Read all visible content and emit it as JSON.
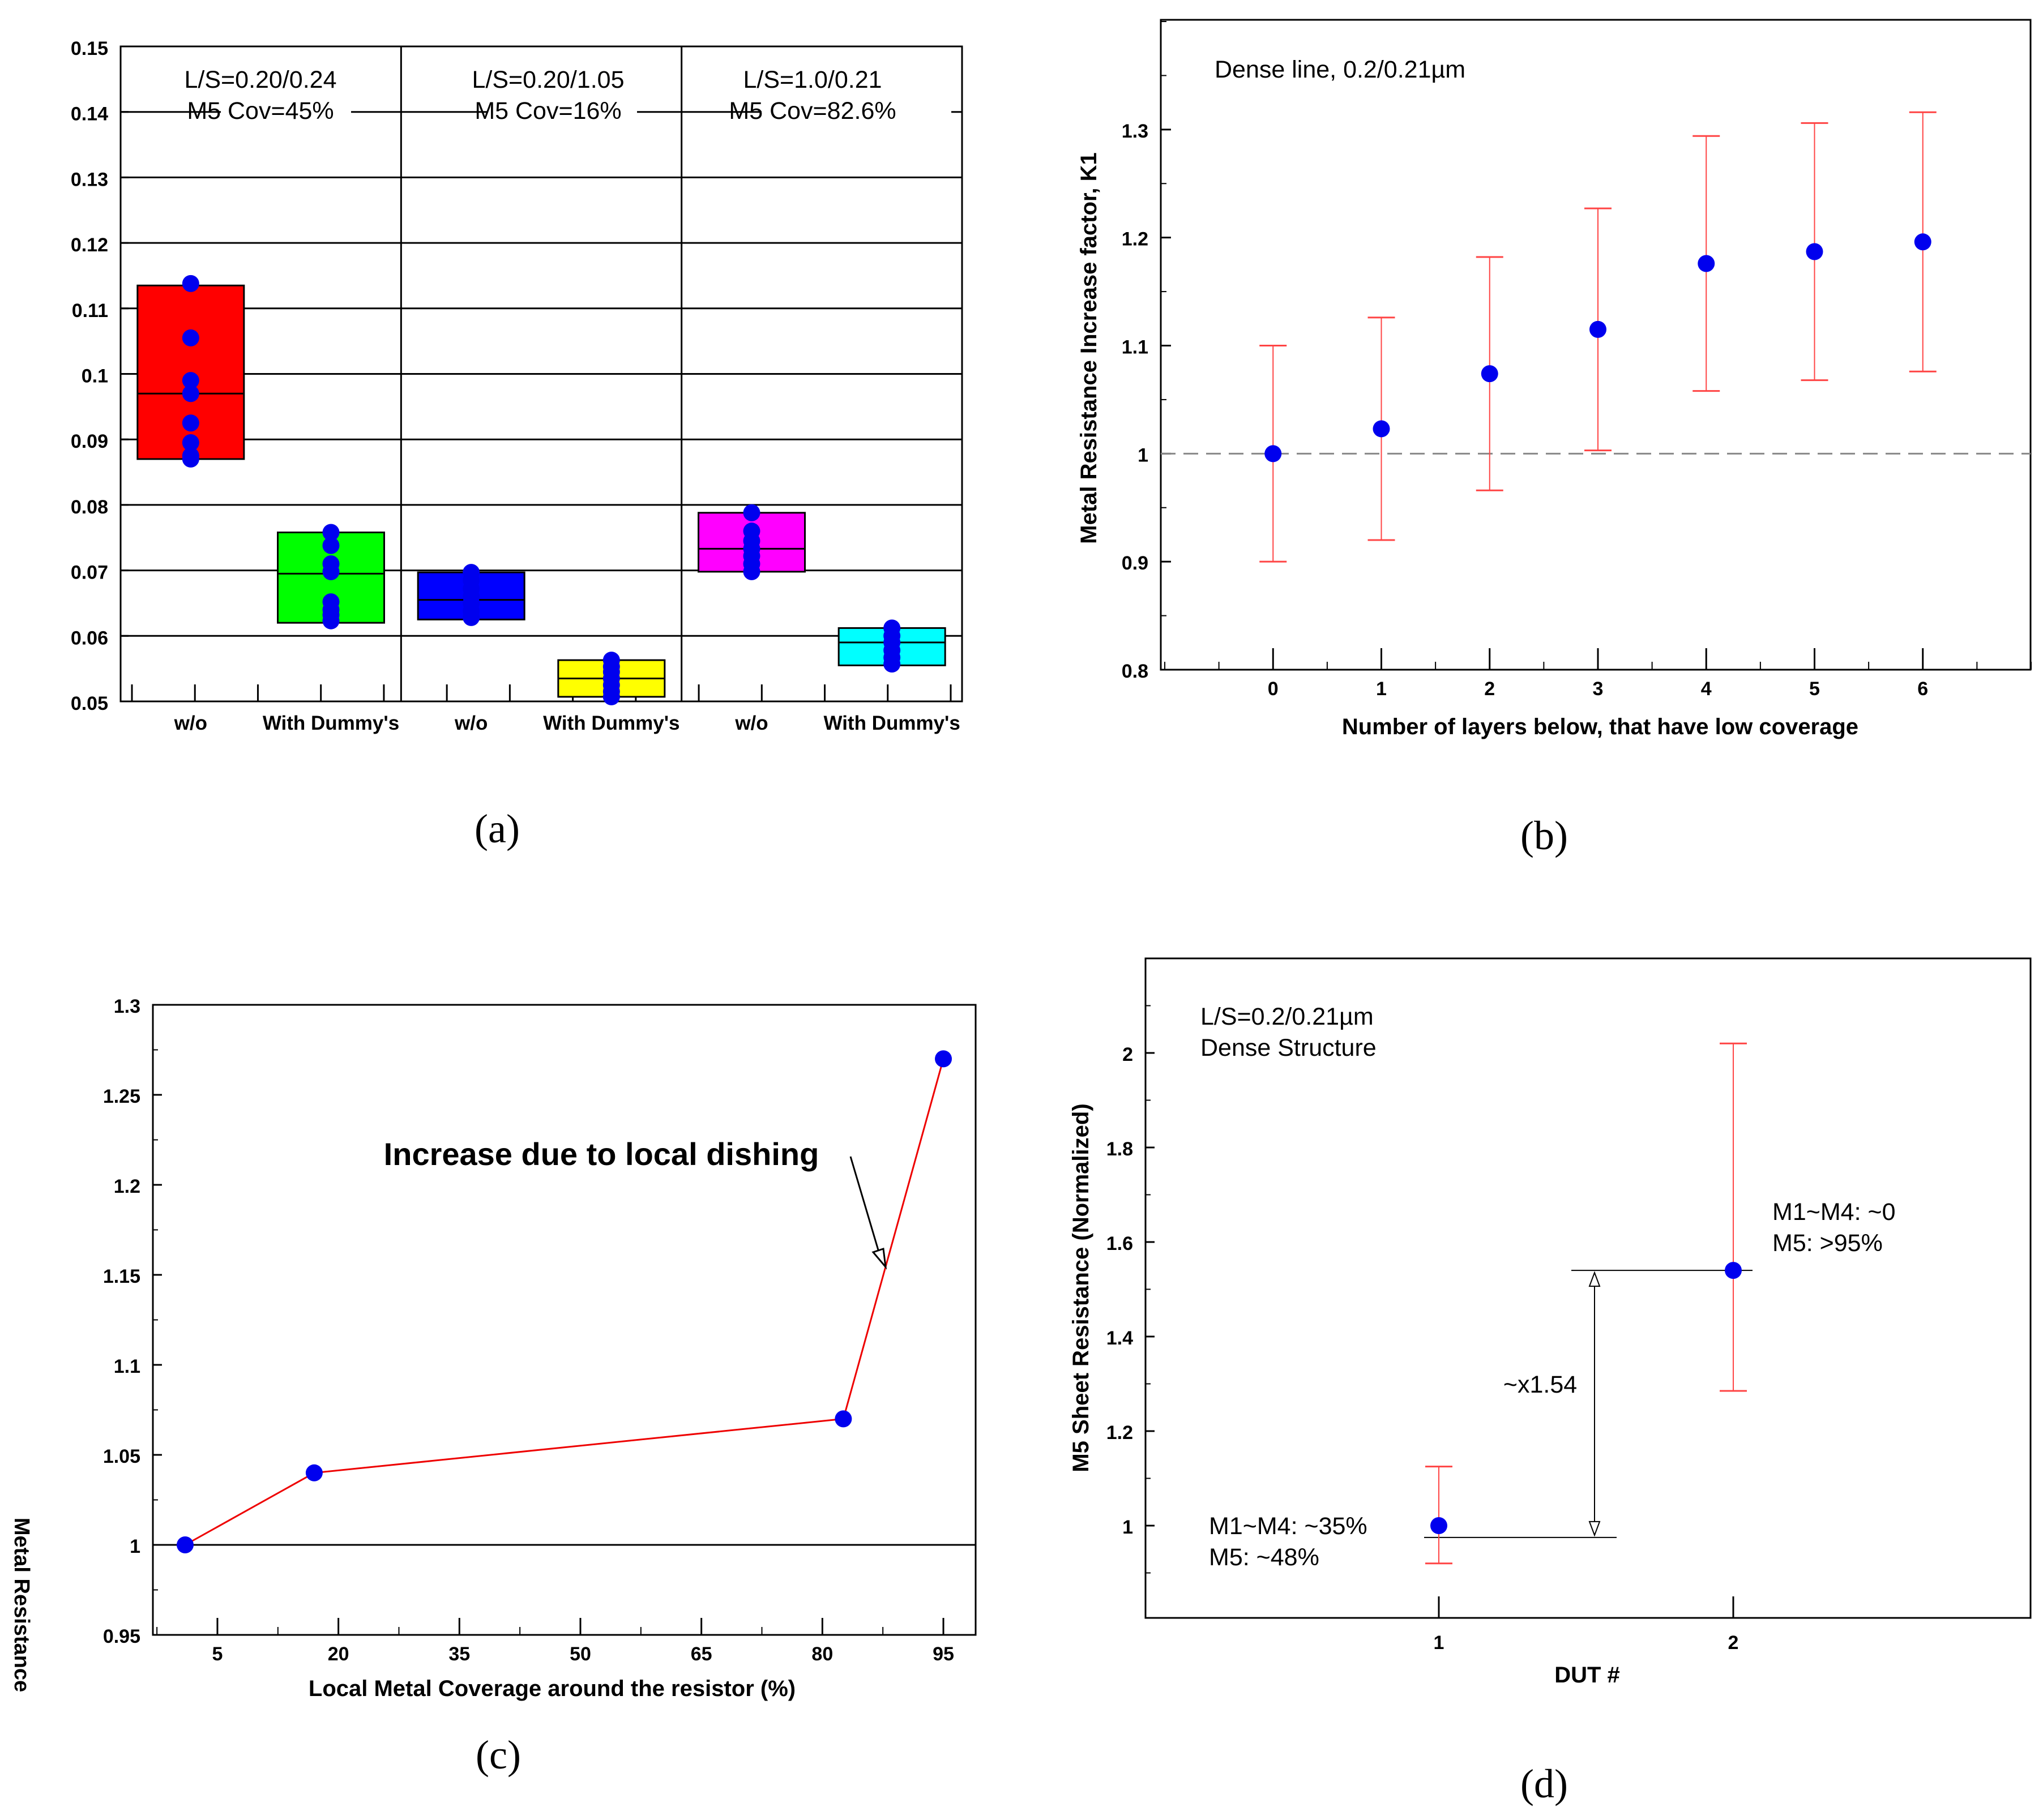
{
  "chart_data": [
    {
      "id": "a",
      "type": "box",
      "caption": "(a)",
      "ylim": [
        0.05,
        0.15
      ],
      "yticks": [
        "0.05",
        "0.06",
        "0.07",
        "0.08",
        "0.09",
        "0.1",
        "0.11",
        "0.12",
        "0.13",
        "0.14",
        "0.15"
      ],
      "grid": true,
      "groups": [
        {
          "line1": "L/S=0.20/0.24",
          "line2": "M5 Cov=45%"
        },
        {
          "line1": "L/S=0.20/1.05",
          "line2": "M5 Cov=16%"
        },
        {
          "line1": "L/S=1.0/0.21",
          "line2": "M5 Cov=82.6%"
        }
      ],
      "categories": [
        "w/o",
        "With Dummy's",
        "w/o",
        "With Dummy's",
        "w/o",
        "With Dummy's"
      ],
      "boxes": [
        {
          "q1": 0.087,
          "median": 0.097,
          "q3": 0.1135,
          "color": "#ff0000",
          "points": [
            0.1138,
            0.1055,
            0.099,
            0.097,
            0.0925,
            0.0895,
            0.0875,
            0.087
          ]
        },
        {
          "q1": 0.062,
          "median": 0.0695,
          "q3": 0.0758,
          "color": "#00ff00",
          "points": [
            0.0758,
            0.0738,
            0.071,
            0.0698,
            0.0652,
            0.064,
            0.0632,
            0.0623
          ]
        },
        {
          "q1": 0.0625,
          "median": 0.0655,
          "q3": 0.0697,
          "color": "#0000ff",
          "points": [
            0.0697,
            0.0685,
            0.0672,
            0.066,
            0.065,
            0.0638,
            0.0628
          ]
        },
        {
          "q1": 0.0507,
          "median": 0.0535,
          "q3": 0.0563,
          "color": "#ffff00",
          "points": [
            0.0563,
            0.0553,
            0.0545,
            0.0535,
            0.0525,
            0.0515,
            0.0507
          ]
        },
        {
          "q1": 0.0698,
          "median": 0.0733,
          "q3": 0.0788,
          "color": "#ff00ff",
          "points": [
            0.0788,
            0.076,
            0.0745,
            0.0733,
            0.0722,
            0.071,
            0.0698
          ]
        },
        {
          "q1": 0.0555,
          "median": 0.059,
          "q3": 0.0612,
          "color": "#00ffff",
          "points": [
            0.0612,
            0.06,
            0.059,
            0.0578,
            0.0567,
            0.0557
          ]
        }
      ]
    },
    {
      "id": "b",
      "type": "errorbar",
      "caption": "(b)",
      "annotation": "Dense line, 0.2/0.21µm",
      "xlabel": "Number of layers below, that have low coverage",
      "ylabel": "Metal Resistance Increase factor, K1",
      "xlim": [
        -1,
        7
      ],
      "ylim": [
        0.8,
        1.4
      ],
      "xticks": [
        "0",
        "1",
        "2",
        "3",
        "4",
        "5",
        "6"
      ],
      "yticks": [
        "0.8",
        "0.9",
        "1",
        "1.1",
        "1.2",
        "1.3"
      ],
      "reference_line": 1,
      "points": [
        {
          "x": 0,
          "y": 1.0,
          "lo": 0.9,
          "hi": 1.1
        },
        {
          "x": 1,
          "y": 1.023,
          "lo": 0.92,
          "hi": 1.126
        },
        {
          "x": 2,
          "y": 1.074,
          "lo": 0.966,
          "hi": 1.182
        },
        {
          "x": 3,
          "y": 1.115,
          "lo": 1.003,
          "hi": 1.227
        },
        {
          "x": 4,
          "y": 1.176,
          "lo": 1.058,
          "hi": 1.294
        },
        {
          "x": 5,
          "y": 1.187,
          "lo": 1.068,
          "hi": 1.306
        },
        {
          "x": 6,
          "y": 1.196,
          "lo": 1.076,
          "hi": 1.316
        }
      ]
    },
    {
      "id": "c",
      "type": "line",
      "caption": "(c)",
      "annotation": "Increase due to local dishing",
      "xlabel": "Local Metal Coverage around the resistor (%)",
      "ylabel": "Metal Resistance",
      "xlim": [
        -3,
        99
      ],
      "ylim": [
        0.95,
        1.3
      ],
      "xticks": [
        "5",
        "20",
        "35",
        "50",
        "65",
        "80",
        "95"
      ],
      "yticks": [
        "0.95",
        "1",
        "1.05",
        "1.1",
        "1.15",
        "1.2",
        "1.25",
        "1.3"
      ],
      "reference_line": 1,
      "x": [
        1,
        17,
        82.6,
        95
      ],
      "y": [
        1.0,
        1.04,
        1.07,
        1.27
      ]
    },
    {
      "id": "d",
      "type": "errorbar",
      "caption": "(d)",
      "annotation_lines": [
        "L/S=0.2/0.21µm",
        "Dense Structure"
      ],
      "xlabel": "DUT #",
      "ylabel": "M5 Sheet Resistance (Normalized)",
      "xlim": [
        0,
        3
      ],
      "ylim": [
        0.8,
        2.2
      ],
      "xticks": [
        "1",
        "2"
      ],
      "yticks": [
        "1",
        "1.2",
        "1.4",
        "1.6",
        "1.8",
        "2"
      ],
      "ratio_label": "~x1.54",
      "labels": [
        {
          "line1": "M1~M4: ~35%",
          "line2": "M5: ~48%"
        },
        {
          "line1": "M1~M4: ~0",
          "line2": "M5: >95%"
        }
      ],
      "points": [
        {
          "x": 1,
          "y": 1.0,
          "lo": 0.92,
          "hi": 1.125
        },
        {
          "x": 2,
          "y": 1.54,
          "lo": 1.285,
          "hi": 2.02
        }
      ]
    }
  ]
}
